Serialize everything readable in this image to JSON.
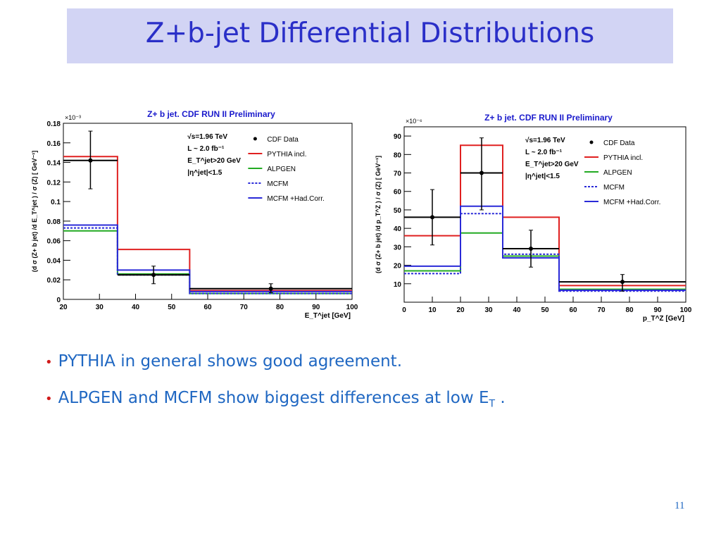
{
  "slide": {
    "title": "Z+b-jet Differential Distributions",
    "page_number": "11",
    "bullets": [
      {
        "text": "PYTHIA in general shows good agreement.",
        "sub": "",
        "tail": ""
      },
      {
        "text": " ALPGEN and MCFM show biggest differences at low E",
        "sub": "T",
        "tail": " ."
      }
    ]
  },
  "colors": {
    "title_bg": "#d2d4f4",
    "title_text": "#2a2fc8",
    "bullet_text": "#1f67c2",
    "bullet_dot": "#d11a1a"
  },
  "chart_data": [
    {
      "type": "line",
      "title": "Z+ b jet. CDF RUN II Preliminary",
      "exponent": "×10⁻³",
      "ylabel": "(d σ (Z+ b jet) /d E_T^jet ) / σ (Z)    [ GeV⁻¹]",
      "xlabel": "E_T^jet   [GeV]",
      "xlim": [
        20,
        100
      ],
      "ylim": [
        0,
        0.18
      ],
      "xticks": [
        "20",
        "30",
        "40",
        "50",
        "60",
        "70",
        "80",
        "90",
        "100"
      ],
      "yticks": [
        "0",
        "0.02",
        "0.04",
        "0.06",
        "0.08",
        "0.1",
        "0.12",
        "0.14",
        "0.16",
        "0.18"
      ],
      "bin_edges": [
        20,
        35,
        55,
        100
      ],
      "info": [
        "√s=1.96 TeV",
        "L ~ 2.0 fb⁻¹",
        "E_T^jet>20 GeV",
        "|η^jet|<1.5"
      ],
      "series": [
        {
          "name": "PYTHIA incl.",
          "color": "#e02020",
          "dash": "",
          "values": [
            0.146,
            0.051,
            0.009
          ]
        },
        {
          "name": "ALPGEN",
          "color": "#22aa22",
          "dash": "",
          "values": [
            0.07,
            0.026,
            0.006
          ]
        },
        {
          "name": "MCFM",
          "color": "#2a2ad8",
          "dash": "3,2",
          "values": [
            0.073,
            0.025,
            0.006
          ]
        },
        {
          "name": "MCFM +Had.Corr.",
          "color": "#2a2ad8",
          "dash": "",
          "values": [
            0.076,
            0.03,
            0.008
          ]
        }
      ],
      "data": {
        "name": "CDF Data",
        "color": "#000000",
        "points": [
          {
            "x": 27.5,
            "y": 0.142,
            "elo": 0.113,
            "ehi": 0.172
          },
          {
            "x": 45,
            "y": 0.025,
            "elo": 0.016,
            "ehi": 0.034
          },
          {
            "x": 77.5,
            "y": 0.011,
            "elo": 0.007,
            "ehi": 0.016
          }
        ]
      }
    },
    {
      "type": "line",
      "title": "Z+ b jet. CDF RUN II Preliminary",
      "exponent": "×10⁻⁶",
      "ylabel": "(d σ (Z+ b jet) /d p_T^Z ) / σ (Z)    [ GeV⁻¹]",
      "xlabel": "p_T^Z   [GeV]",
      "xlim": [
        0,
        100
      ],
      "ylim": [
        0,
        95
      ],
      "xticks": [
        "0",
        "10",
        "20",
        "30",
        "40",
        "50",
        "60",
        "70",
        "80",
        "90",
        "100"
      ],
      "yticks": [
        "10",
        "20",
        "30",
        "40",
        "50",
        "60",
        "70",
        "80",
        "90"
      ],
      "bin_edges": [
        0,
        20,
        35,
        55,
        100
      ],
      "info": [
        "√s=1.96 TeV",
        "L ~ 2.0 fb⁻¹",
        "E_T^jet>20 GeV",
        "|η^jet|<1.5"
      ],
      "series": [
        {
          "name": "PYTHIA incl.",
          "color": "#e02020",
          "dash": "",
          "values": [
            36,
            85,
            46,
            9
          ]
        },
        {
          "name": "ALPGEN",
          "color": "#22aa22",
          "dash": "",
          "values": [
            17,
            37.5,
            25,
            7
          ]
        },
        {
          "name": "MCFM",
          "color": "#2a2ad8",
          "dash": "3,2",
          "values": [
            15.5,
            48,
            26,
            6
          ]
        },
        {
          "name": "MCFM +Had.Corr.",
          "color": "#2a2ad8",
          "dash": "",
          "values": [
            19.5,
            52,
            24,
            6.5
          ]
        }
      ],
      "data": {
        "name": "CDF Data",
        "color": "#000000",
        "points": [
          {
            "x": 10,
            "y": 46,
            "elo": 31,
            "ehi": 61
          },
          {
            "x": 27.5,
            "y": 70,
            "elo": 50,
            "ehi": 89
          },
          {
            "x": 45,
            "y": 29,
            "elo": 19,
            "ehi": 39
          },
          {
            "x": 77.5,
            "y": 11,
            "elo": 6,
            "ehi": 15
          }
        ]
      }
    }
  ]
}
